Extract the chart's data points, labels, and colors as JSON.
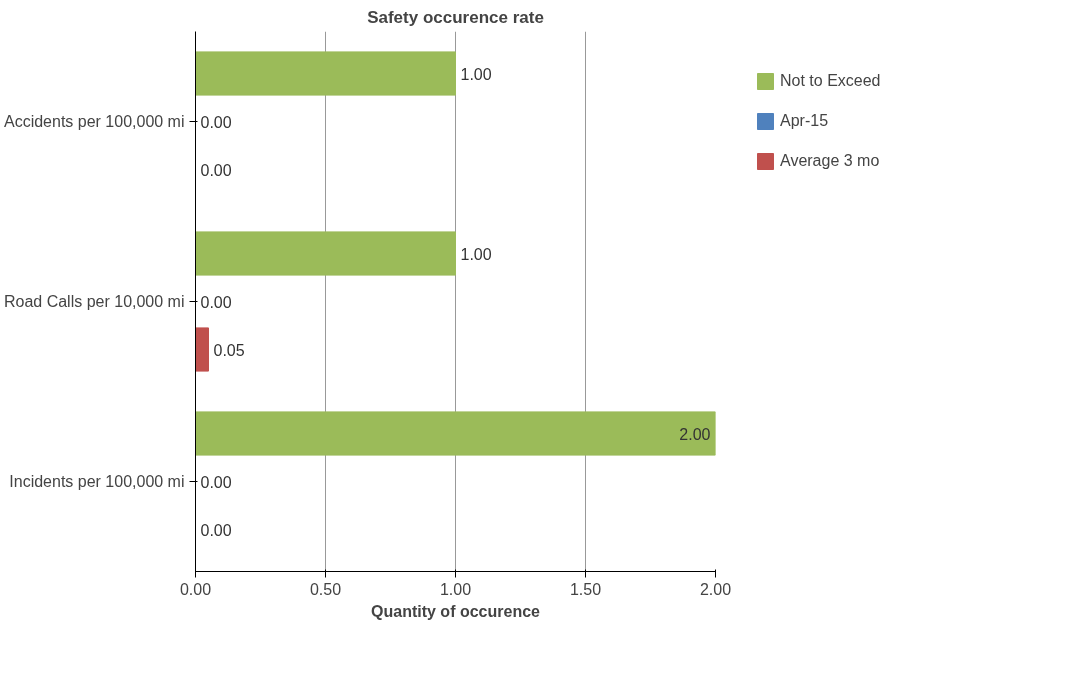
{
  "chart_data": {
    "type": "bar",
    "orientation": "horizontal",
    "title": "Safety occurence rate",
    "xlabel": "Quantity of occurence",
    "categories": [
      "Accidents per 100,000 mi",
      "Road Calls per 10,000 mi",
      "Incidents per 100,000 mi"
    ],
    "series": [
      {
        "name": "Not to Exceed",
        "color": "#9bbb59",
        "values": [
          1,
          1,
          2
        ],
        "value_labels": [
          "1.00",
          "1.00",
          "2.00"
        ]
      },
      {
        "name": "Apr-15",
        "color": "#4f81bd",
        "values": [
          0,
          0,
          0
        ],
        "value_labels": [
          "0.00",
          "0.00",
          "0.00"
        ]
      },
      {
        "name": "Average 3 mo",
        "color": "#c0504d",
        "values": [
          0,
          0.05,
          0
        ],
        "value_labels": [
          "0.00",
          "0.05",
          "0.00"
        ]
      }
    ],
    "xlim": [
      0,
      2
    ],
    "xticks": [
      {
        "value": 0,
        "label": "0.00"
      },
      {
        "value": 0.5,
        "label": "0.50"
      },
      {
        "value": 1,
        "label": "1.00"
      },
      {
        "value": 1.5,
        "label": "1.50"
      },
      {
        "value": 2,
        "label": "2.00"
      }
    ],
    "grid": "x",
    "legend": "right"
  }
}
